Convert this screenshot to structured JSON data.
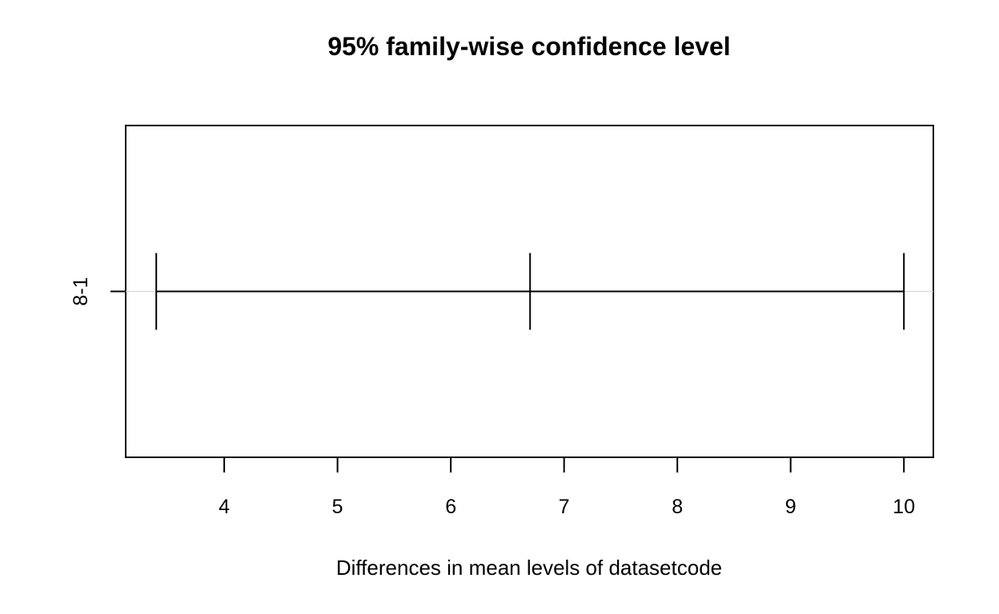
{
  "chart_data": {
    "type": "errorbar",
    "title": "95% family-wise confidence level",
    "xlabel": "Differences in mean levels of datasetcode",
    "ylabel": "",
    "xlim": [
      3.13,
      10.26
    ],
    "x_ticks": [
      4,
      5,
      6,
      7,
      8,
      9,
      10
    ],
    "comparisons": [
      {
        "label": "8-1",
        "lower": 3.4,
        "estimate": 6.7,
        "upper": 10.0
      }
    ],
    "zero_line": false,
    "grid": false
  }
}
